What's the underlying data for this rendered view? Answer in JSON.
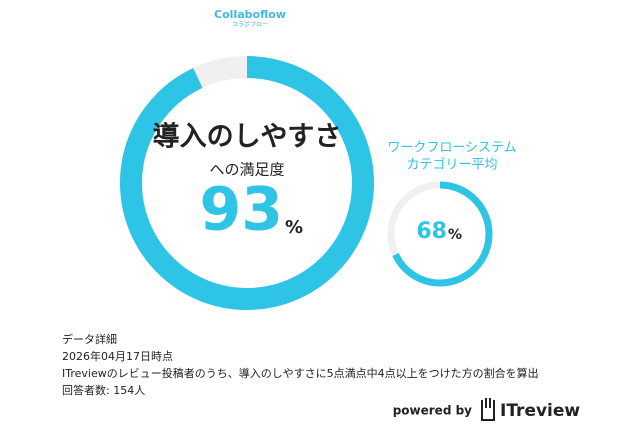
{
  "logo": {
    "name": "Collaboflow",
    "sub": "コラボフロー"
  },
  "chart_data": [
    {
      "type": "donut",
      "title": "導入のしやすさ",
      "subtitle": "への満足度",
      "values": [
        93
      ],
      "unit": "%",
      "range": [
        0,
        100
      ],
      "color": "#2ec4e6",
      "track_color": "#f0f0f0"
    },
    {
      "type": "donut",
      "title_lines": [
        "ワークフローシステム",
        "カテゴリー平均"
      ],
      "values": [
        68
      ],
      "unit": "%",
      "range": [
        0,
        100
      ],
      "color": "#2ec4e6",
      "track_color": "#f0f0f0"
    }
  ],
  "details": {
    "heading": "データ詳細",
    "date": "2026年04月17日時点",
    "description": "ITreviewのレビュー投稿者のうち、導入のしやすさに5点満点中4点以上をつけた方の割合を算出",
    "respondents": "回答者数: 154人"
  },
  "footer": {
    "powered_by": "powered by",
    "brand": "ITreview"
  }
}
